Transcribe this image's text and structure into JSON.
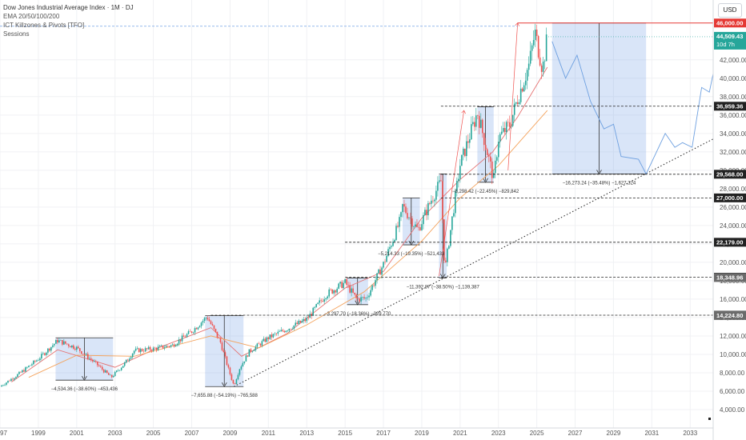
{
  "header": {
    "title": "Dow Jones Industrial Average Index · 1M · DJ",
    "indicators": [
      "EMA 20/50/100/200",
      "ICT Killzones & Pivots [TFO]",
      "Sessions"
    ],
    "currency": "USD"
  },
  "chart_data": {
    "type": "candlestick",
    "title": "Dow Jones Industrial Average Index · 1M · DJ",
    "x_range": [
      1997,
      2034.2
    ],
    "y_range": [
      2000,
      48500
    ],
    "x_ticks": [
      1997,
      1999,
      2001,
      2003,
      2005,
      2007,
      2009,
      2011,
      2013,
      2015,
      2017,
      2019,
      2021,
      2023,
      2025,
      2027,
      2029,
      2031,
      2033
    ],
    "y_ticks": [
      4000,
      6000,
      8000,
      10000,
      12000,
      14000,
      16000,
      18000,
      20000,
      22000,
      24000,
      26000,
      28000,
      30000,
      32000,
      34000,
      36000,
      38000,
      40000,
      42000
    ],
    "price_path": [
      [
        1997.0,
        6500
      ],
      [
        1998.0,
        7900
      ],
      [
        1999.0,
        9500
      ],
      [
        2000.0,
        11500
      ],
      [
        2001.0,
        10700
      ],
      [
        2002.0,
        9000
      ],
      [
        2002.8,
        7500
      ],
      [
        2003.5,
        9000
      ],
      [
        2004.0,
        10400
      ],
      [
        2005.0,
        10600
      ],
      [
        2006.0,
        11000
      ],
      [
        2007.0,
        12500
      ],
      [
        2007.8,
        14100
      ],
      [
        2008.5,
        11300
      ],
      [
        2008.9,
        8500
      ],
      [
        2009.2,
        6600
      ],
      [
        2009.5,
        8500
      ],
      [
        2010.0,
        10300
      ],
      [
        2011.0,
        11800
      ],
      [
        2012.0,
        12800
      ],
      [
        2013.0,
        13800
      ],
      [
        2014.0,
        16500
      ],
      [
        2015.0,
        17800
      ],
      [
        2015.6,
        16000
      ],
      [
        2016.1,
        16100
      ],
      [
        2017.0,
        19800
      ],
      [
        2017.9,
        24700
      ],
      [
        2018.0,
        26100
      ],
      [
        2018.8,
        23500
      ],
      [
        2019.5,
        26800
      ],
      [
        2020.0,
        28800
      ],
      [
        2020.2,
        19000
      ],
      [
        2020.6,
        25000
      ],
      [
        2021.0,
        30600
      ],
      [
        2021.9,
        36300
      ],
      [
        2022.3,
        33000
      ],
      [
        2022.75,
        29000
      ],
      [
        2023.0,
        33500
      ],
      [
        2023.6,
        35000
      ],
      [
        2024.0,
        37800
      ],
      [
        2024.6,
        41500
      ],
      [
        2024.9,
        45000
      ],
      [
        2025.3,
        41000
      ],
      [
        2025.55,
        44509.43
      ]
    ],
    "emas": [
      {
        "name": "EMA 20",
        "color": "#e57373",
        "values": [
          [
            1997.6,
            7000
          ],
          [
            2000,
            10500
          ],
          [
            2003,
            8600
          ],
          [
            2005,
            10500
          ],
          [
            2008,
            12900
          ],
          [
            2009.6,
            9800
          ],
          [
            2012,
            12300
          ],
          [
            2015,
            17200
          ],
          [
            2017,
            19000
          ],
          [
            2019,
            24800
          ],
          [
            2021,
            29000
          ],
          [
            2022.7,
            32000
          ],
          [
            2024,
            35800
          ],
          [
            2025.55,
            41200
          ]
        ]
      },
      {
        "name": "EMA 50",
        "color": "#f4a35d",
        "values": [
          [
            1998.5,
            7500
          ],
          [
            2001,
            9900
          ],
          [
            2004,
            9800
          ],
          [
            2008,
            12000
          ],
          [
            2010.5,
            10700
          ],
          [
            2013,
            13200
          ],
          [
            2016,
            16800
          ],
          [
            2019,
            22300
          ],
          [
            2021,
            27000
          ],
          [
            2023,
            30500
          ],
          [
            2025.55,
            36500
          ]
        ]
      }
    ],
    "horizontal_levels": [
      {
        "value": 46000,
        "label": "46,000.00",
        "color": "#e53935",
        "style": "solid"
      },
      {
        "value": 44509.43,
        "label": "44,509.43",
        "sublabel": "10d 7h",
        "color": "#26a69a",
        "style": "dotted"
      },
      {
        "value": 36959.36,
        "label": "36,959.36",
        "color": "#222222",
        "style": "dashed"
      },
      {
        "value": 29568,
        "label": "29,568.00",
        "color": "#222222",
        "style": "dashed"
      },
      {
        "value": 27000,
        "label": "27,000.00",
        "color": "#222222",
        "style": "dashed"
      },
      {
        "value": 22179,
        "label": "22,179.00",
        "color": "#222222",
        "style": "dashed"
      },
      {
        "value": 18383.7,
        "label": "18,383.70",
        "color": "#222222",
        "style": "dashed"
      },
      {
        "value": 18348.96,
        "label": "18,348.96",
        "color": "#6b6b6b",
        "style": "none"
      },
      {
        "value": 14252.44,
        "label": "14,252.44",
        "color": "#222222",
        "style": "dashed"
      },
      {
        "value": 14224.8,
        "label": "14,224.80",
        "color": "#6b6b6b",
        "style": "none"
      }
    ],
    "drawdowns": [
      {
        "x1": 1999.9,
        "x2": 2002.9,
        "top": 11800,
        "bottom": 7200,
        "label": "−4,534.36 (−38.60%) −453,436"
      },
      {
        "x1": 2007.7,
        "x2": 2009.7,
        "top": 14200,
        "bottom": 6500,
        "label": "−7,655.88 (−54.19%) −765,588"
      },
      {
        "x1": 2015.1,
        "x2": 2016.2,
        "top": 18300,
        "bottom": 15400,
        "label": "−3,297.70 (−18.36%) −329,770"
      },
      {
        "x1": 2018.0,
        "x2": 2018.9,
        "top": 27000,
        "bottom": 21900,
        "label": "−5,214.33 (−19.35%) −521,433"
      },
      {
        "x1": 2019.9,
        "x2": 2020.3,
        "top": 29600,
        "bottom": 18300,
        "label": "−11,392.87 (−38.50%) −1,139,387"
      },
      {
        "x1": 2021.9,
        "x2": 2022.75,
        "top": 36900,
        "bottom": 28700,
        "label": "−8,298.42 (−22.45%) −829,842"
      },
      {
        "x1": 2025.8,
        "x2": 2030.7,
        "top": 46000,
        "bottom": 29600,
        "label": "−16,273.24 (−35.48%) −1,627,324"
      }
    ],
    "trendline": {
      "from": [
        2009.2,
        6500
      ],
      "to": [
        2034.2,
        33400
      ]
    },
    "projection": [
      [
        2025.8,
        44000
      ],
      [
        2026.5,
        40000
      ],
      [
        2027.1,
        42500
      ],
      [
        2027.8,
        37500
      ],
      [
        2028.5,
        34500
      ],
      [
        2029.0,
        35000
      ],
      [
        2029.4,
        31500
      ],
      [
        2030.3,
        31200
      ],
      [
        2030.7,
        29600
      ],
      [
        2031.7,
        34000
      ],
      [
        2032.2,
        32500
      ],
      [
        2032.6,
        33000
      ],
      [
        2033.1,
        32500
      ],
      [
        2033.6,
        39000
      ],
      [
        2034.0,
        38500
      ],
      [
        2034.2,
        40500
      ]
    ]
  }
}
